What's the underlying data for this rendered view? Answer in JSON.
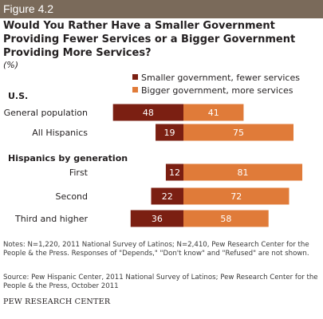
{
  "figure_label": "Figure 4.2",
  "chart_data": {
    "type": "bar",
    "title": "Would You Rather Have a Smaller Government Providing Fewer Services or a Bigger Government Providing More Services?",
    "subtitle": "(%)",
    "series": [
      {
        "name": "Smaller government, fewer services",
        "color": "#7b1f12",
        "values": [
          48,
          19,
          12,
          22,
          36
        ]
      },
      {
        "name": "Bigger government, more services",
        "color": "#e07b39",
        "values": [
          41,
          75,
          81,
          72,
          58
        ]
      }
    ],
    "groups": [
      {
        "label": "U.S.",
        "categories": [
          "General population",
          "All Hispanics"
        ]
      },
      {
        "label": "Hispanics by generation",
        "categories": [
          "First",
          "Second",
          "Third and higher"
        ]
      }
    ],
    "categories": [
      "General population",
      "All Hispanics",
      "First",
      "Second",
      "Third and higher"
    ],
    "legend_position": "top-right",
    "grid": false
  },
  "notes": "Notes: N=1,220, 2011 National Survey of Latinos; N=2,410, Pew Research Center for the People & the Press. Responses of \"Depends,\" \"Don't know\" and \"Refused\" are not shown.",
  "source": "Source: Pew Hispanic Center, 2011 National Survey of Latinos; Pew Research Center for the People & the Press, October 2011",
  "credit": "PEW RESEARCH CENTER"
}
